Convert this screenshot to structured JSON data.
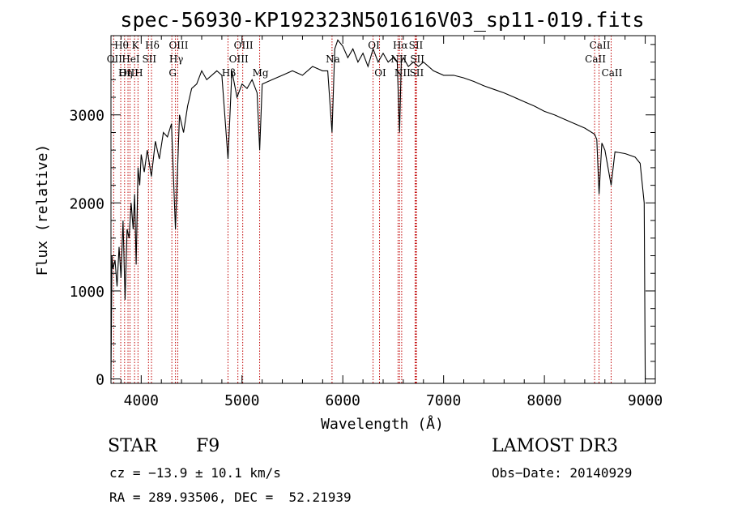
{
  "chart_data": {
    "type": "line",
    "title": "spec-56930-KP192323N501616V03_sp11-019.fits",
    "xlabel": "Wavelength (Å)",
    "ylabel": "Flux (relative)",
    "xlim": [
      3700,
      9100
    ],
    "ylim": [
      -50,
      3900
    ],
    "x_ticks": [
      4000,
      5000,
      6000,
      7000,
      8000,
      9000
    ],
    "x_tick_labels": [
      "4000",
      "5000",
      "6000",
      "7000",
      "8000",
      "9000"
    ],
    "y_ticks": [
      0,
      1000,
      2000,
      3000
    ],
    "y_tick_labels": [
      "0",
      "1000",
      "2000",
      "3000"
    ],
    "spectrum": {
      "x": [
        3700,
        3710,
        3720,
        3740,
        3760,
        3780,
        3800,
        3820,
        3840,
        3860,
        3880,
        3900,
        3920,
        3935,
        3950,
        3968,
        3985,
        4000,
        4030,
        4060,
        4101,
        4140,
        4180,
        4220,
        4260,
        4300,
        4340,
        4380,
        4420,
        4460,
        4500,
        4550,
        4600,
        4650,
        4700,
        4750,
        4800,
        4861,
        4900,
        4950,
        5000,
        5050,
        5100,
        5150,
        5175,
        5200,
        5300,
        5400,
        5500,
        5600,
        5700,
        5800,
        5850,
        5893,
        5920,
        5950,
        6000,
        6050,
        6100,
        6150,
        6200,
        6250,
        6300,
        6350,
        6400,
        6450,
        6500,
        6540,
        6563,
        6580,
        6600,
        6650,
        6700,
        6750,
        6800,
        6900,
        7000,
        7100,
        7200,
        7300,
        7400,
        7500,
        7600,
        7700,
        7800,
        7900,
        8000,
        8100,
        8200,
        8300,
        8400,
        8498,
        8520,
        8542,
        8570,
        8600,
        8662,
        8700,
        8800,
        8900,
        8950,
        8990,
        9000
      ],
      "y": [
        0,
        1400,
        1250,
        1350,
        1050,
        1500,
        1150,
        1800,
        900,
        1700,
        1600,
        2000,
        1700,
        2100,
        1300,
        2400,
        2200,
        2550,
        2350,
        2600,
        2300,
        2700,
        2500,
        2800,
        2750,
        2900,
        1700,
        3000,
        2800,
        3100,
        3300,
        3350,
        3500,
        3400,
        3450,
        3500,
        3450,
        2500,
        3500,
        3200,
        3350,
        3300,
        3400,
        3250,
        2600,
        3350,
        3400,
        3450,
        3500,
        3450,
        3550,
        3500,
        3500,
        2800,
        3750,
        3850,
        3780,
        3650,
        3750,
        3600,
        3700,
        3550,
        3750,
        3600,
        3700,
        3600,
        3650,
        3600,
        2800,
        3600,
        3650,
        3550,
        3600,
        3550,
        3600,
        3500,
        3450,
        3450,
        3420,
        3380,
        3330,
        3290,
        3250,
        3200,
        3150,
        3100,
        3040,
        3000,
        2950,
        2900,
        2850,
        2780,
        2720,
        2100,
        2680,
        2600,
        2200,
        2580,
        2560,
        2520,
        2450,
        2000,
        0
      ]
    },
    "lines": [
      {
        "label": "Hθ",
        "x": 3797,
        "row": 0
      },
      {
        "label": "OII",
        "x": 3727,
        "row": 1
      },
      {
        "label": "OIII",
        "x": 3869,
        "row": 2
      },
      {
        "label": "K",
        "x": 3934,
        "row": 0
      },
      {
        "label": "HeI",
        "x": 3889,
        "row": 1
      },
      {
        "label": "Hη",
        "x": 3835,
        "row": 2
      },
      {
        "label": "Hδ",
        "x": 4102,
        "row": 0
      },
      {
        "label": "SII",
        "x": 4072,
        "row": 1
      },
      {
        "label": "H",
        "x": 3968,
        "row": 2
      },
      {
        "label": "OIII",
        "x": 4363,
        "row": 0
      },
      {
        "label": "Hγ",
        "x": 4340,
        "row": 1
      },
      {
        "label": "G",
        "x": 4304,
        "row": 2
      },
      {
        "label": "OIII",
        "x": 5007,
        "row": 0
      },
      {
        "label": "OIII",
        "x": 4959,
        "row": 1
      },
      {
        "label": "Hβ",
        "x": 4861,
        "row": 2
      },
      {
        "label": "Mg",
        "x": 5175,
        "row": 2
      },
      {
        "label": "Na",
        "x": 5893,
        "row": 1
      },
      {
        "label": "OI",
        "x": 6300,
        "row": 0
      },
      {
        "label": "OI",
        "x": 6364,
        "row": 2
      },
      {
        "label": "Hα",
        "x": 6563,
        "row": 0
      },
      {
        "label": "NII",
        "x": 6548,
        "row": 1
      },
      {
        "label": "NII",
        "x": 6584,
        "row": 2
      },
      {
        "label": "SII",
        "x": 6717,
        "row": 0
      },
      {
        "label": "SII",
        "x": 6731,
        "row": 1
      },
      {
        "label": "SII",
        "x": 6725,
        "row": 2
      },
      {
        "label": "CaII",
        "x": 8542,
        "row": 0
      },
      {
        "label": "CaII",
        "x": 8498,
        "row": 1
      },
      {
        "label": "CaII",
        "x": 8662,
        "row": 2
      }
    ]
  },
  "info": {
    "object_class": "STAR",
    "subclass": "F9",
    "survey": "LAMOST DR3",
    "cz": "cz = −13.9 ± 10.1 km/s",
    "obs_date": "Obs−Date: 20140929",
    "coords": "RA = 289.93506, DEC =  52.21939"
  },
  "colors": {
    "spectrum": "#000000",
    "line_markers": "#c00000",
    "axes": "#000000"
  }
}
